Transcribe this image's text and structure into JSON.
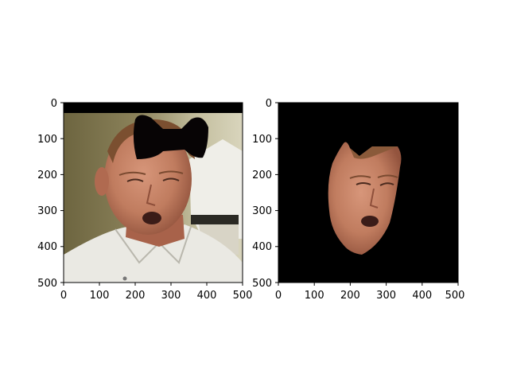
{
  "figure": {
    "background": "#ffffff",
    "panels": [
      {
        "id": "left",
        "description_ref": "face photo with black bow-tie shape overlay",
        "x_ticks": [
          "0",
          "100",
          "200",
          "300",
          "400",
          "500"
        ],
        "y_ticks": [
          "0",
          "100",
          "200",
          "300",
          "400",
          "500"
        ],
        "xlim": [
          0,
          500
        ],
        "ylim": [
          500,
          0
        ]
      },
      {
        "id": "right",
        "description_ref": "segmented face region on black background",
        "x_ticks": [
          "0",
          "100",
          "200",
          "300",
          "400",
          "500"
        ],
        "y_ticks": [
          "0",
          "100",
          "200",
          "300",
          "400",
          "500"
        ],
        "xlim": [
          0,
          500
        ],
        "ylim": [
          500,
          0
        ]
      }
    ],
    "colors": {
      "mask": "#070405",
      "skin": "#c88466",
      "skin_shadow": "#9c5a44",
      "hair": "#7a4e2f",
      "shirt": "#ecebe5",
      "bg_olive": "#7b7348",
      "bg_light": "#c9c4a4"
    }
  }
}
